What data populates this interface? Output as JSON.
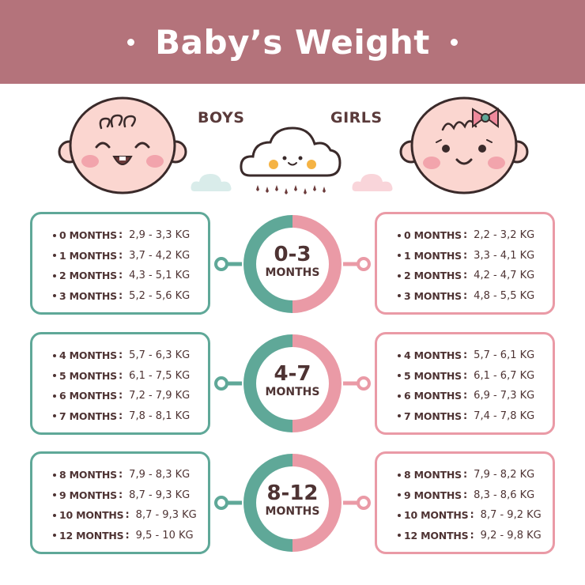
{
  "header": {
    "title": "Baby’s Weight"
  },
  "labels": {
    "boys": "BOYS",
    "girls": "GIRLS"
  },
  "colors": {
    "boy": "#5fa898",
    "girl": "#ea9aa6",
    "header": "#b4737b",
    "text": "#4e3333"
  },
  "icons": [
    "boy-face-icon",
    "girl-face-icon",
    "rain-cloud-icon",
    "small-cloud-icon",
    "bow-icon"
  ],
  "groups": [
    {
      "range": "0-3",
      "unit": "MONTHS",
      "boys": [
        {
          "age": "0 MONTHS",
          "value": "2,9 - 3,3 KG"
        },
        {
          "age": "1 MONTHS",
          "value": "3,7 - 4,2 KG"
        },
        {
          "age": "2 MONTHS",
          "value": "4,3 - 5,1 KG"
        },
        {
          "age": "3 MONTHS",
          "value": "5,2 - 5,6 KG"
        }
      ],
      "girls": [
        {
          "age": "0 MONTHS",
          "value": "2,2 - 3,2 KG"
        },
        {
          "age": "1 MONTHS",
          "value": "3,3 - 4,1 KG"
        },
        {
          "age": "2 MONTHS",
          "value": "4,2 - 4,7 KG"
        },
        {
          "age": "3 MONTHS",
          "value": "4,8 - 5,5 KG"
        }
      ]
    },
    {
      "range": "4-7",
      "unit": "MONTHS",
      "boys": [
        {
          "age": "4 MONTHS",
          "value": "5,7 - 6,3 KG"
        },
        {
          "age": "5 MONTHS",
          "value": "6,1 - 7,5  KG"
        },
        {
          "age": "6 MONTHS",
          "value": "7,2 - 7,9 KG"
        },
        {
          "age": "7 MONTHS",
          "value": "7,8 - 8,1 KG"
        }
      ],
      "girls": [
        {
          "age": "4 MONTHS",
          "value": "5,7 - 6,1 KG"
        },
        {
          "age": "5 MONTHS",
          "value": "6,1 - 6,7  KG"
        },
        {
          "age": "6 MONTHS",
          "value": "6,9 - 7,3 KG"
        },
        {
          "age": "7 MONTHS",
          "value": "7,4 - 7,8 KG"
        }
      ]
    },
    {
      "range": "8-12",
      "unit": "MONTHS",
      "boys": [
        {
          "age": "8 MONTHS",
          "value": "7,9 - 8,3 KG"
        },
        {
          "age": "9 MONTHS",
          "value": "8,7 - 9,3 KG"
        },
        {
          "age": "10 MONTHS",
          "value": "8,7 - 9,3 KG"
        },
        {
          "age": "12 MONTHS",
          "value": "9,5 - 10 KG"
        }
      ],
      "girls": [
        {
          "age": "8 MONTHS",
          "value": "7,9 - 8,2 KG"
        },
        {
          "age": "9 MONTHS",
          "value": "8,3 - 8,6 KG"
        },
        {
          "age": "10 MONTHS",
          "value": "8,7 - 9,2 KG"
        },
        {
          "age": "12 MONTHS",
          "value": "9,2 - 9,8 KG"
        }
      ]
    }
  ]
}
